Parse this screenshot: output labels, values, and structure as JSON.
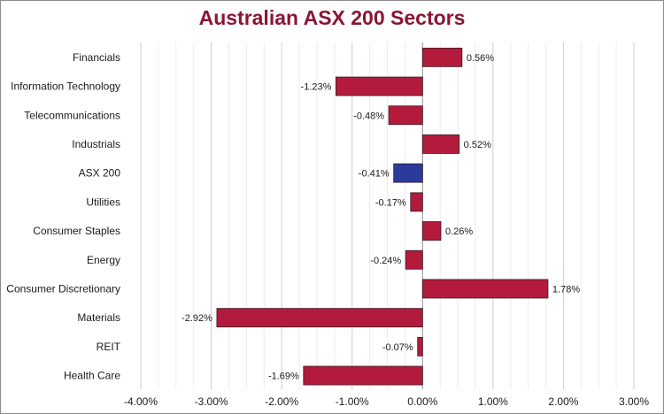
{
  "chart_data": {
    "type": "bar",
    "orientation": "horizontal",
    "title": "Australian ASX 200 Sectors",
    "xlabel": "",
    "ylabel": "",
    "categories": [
      "Financials",
      "Information Technology",
      "Telecommunications",
      "Industrials",
      "ASX 200",
      "Utilities",
      "Consumer Staples",
      "Energy",
      "Consumer Discretionary",
      "Materials",
      "REIT",
      "Health Care"
    ],
    "values": [
      0.56,
      -1.23,
      -0.48,
      0.52,
      -0.41,
      -0.17,
      0.26,
      -0.24,
      1.78,
      -2.92,
      -0.07,
      -1.69
    ],
    "data_labels": [
      "0.56%",
      "-1.23%",
      "-0.48%",
      "0.52%",
      "-0.41%",
      "-0.17%",
      "0.26%",
      "-0.24%",
      "1.78%",
      "-2.92%",
      "-0.07%",
      "-1.69%"
    ],
    "xlim": [
      -4.0,
      3.0
    ],
    "xticks": [
      -4.0,
      -3.0,
      -2.0,
      -1.0,
      0.0,
      1.0,
      2.0,
      3.0
    ],
    "xtick_labels": [
      "-4.00%",
      "-3.00%",
      "-2.00%",
      "-1.00%",
      "0.00%",
      "1.00%",
      "2.00%",
      "3.00%"
    ],
    "minor_gridlines_step": 0.25,
    "grid": true,
    "legend": "none",
    "colors": {
      "bar": "#b31b3c",
      "highlight_bar": "#2b3a9c",
      "highlight_category": "ASX 200",
      "bar_border": "#3a1a20",
      "title": "#8b1535",
      "gridline": "#d9d9d9"
    }
  }
}
